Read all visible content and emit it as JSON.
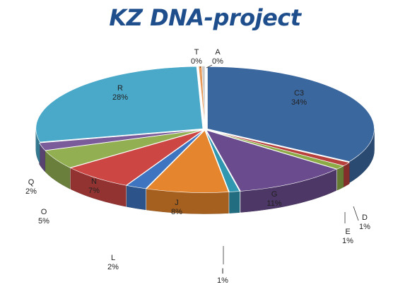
{
  "chart_data": {
    "type": "pie",
    "title": "KZ DNA-project",
    "style": "3d-exploded",
    "slices": [
      {
        "label": "C3",
        "percent_label": "34%",
        "value": 34,
        "color": "#3b679f"
      },
      {
        "label": "D",
        "percent_label": "1%",
        "value": 1,
        "color": "#b8403c"
      },
      {
        "label": "E",
        "percent_label": "1%",
        "value": 1,
        "color": "#8cab47"
      },
      {
        "label": "G",
        "percent_label": "11%",
        "value": 11,
        "color": "#6a4c8e"
      },
      {
        "label": "I",
        "percent_label": "1%",
        "value": 1,
        "color": "#2f97b0"
      },
      {
        "label": "J",
        "percent_label": "8%",
        "value": 8,
        "color": "#e5852d"
      },
      {
        "label": "L",
        "percent_label": "2%",
        "value": 2,
        "color": "#3f75c0"
      },
      {
        "label": "N",
        "percent_label": "7%",
        "value": 7,
        "color": "#cc4744"
      },
      {
        "label": "O",
        "percent_label": "5%",
        "value": 5,
        "color": "#92b052"
      },
      {
        "label": "Q",
        "percent_label": "2%",
        "value": 2,
        "color": "#7a5c9a"
      },
      {
        "label": "R",
        "percent_label": "28%",
        "value": 28,
        "color": "#4aa8c8"
      },
      {
        "label": "T",
        "percent_label": "0%",
        "value": 0.3,
        "color": "#e89a5a"
      },
      {
        "label": "A",
        "percent_label": "0%",
        "value": 0.3,
        "color": "#c9c9c9"
      }
    ],
    "legend": "none"
  }
}
